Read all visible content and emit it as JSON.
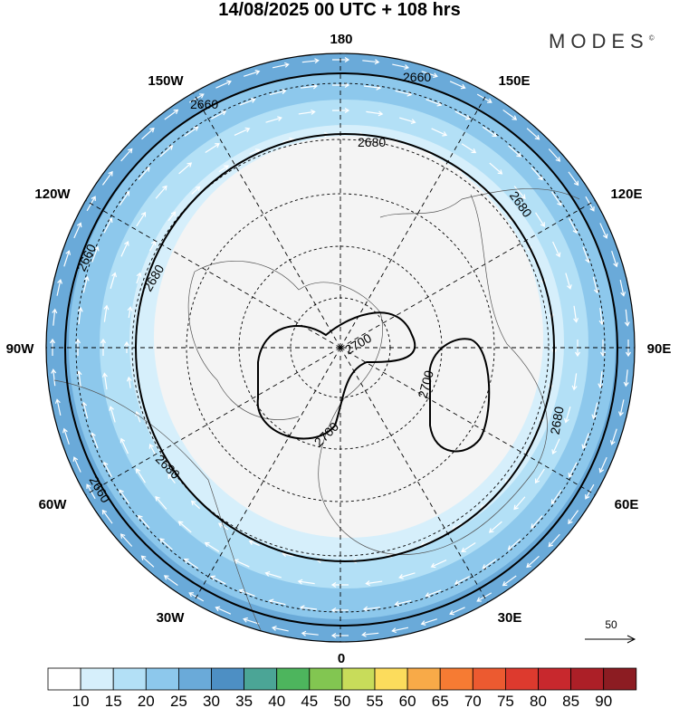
{
  "title": "14/08/2025  00 UTC  + 108 hrs",
  "logo": "MODES",
  "logo_mark": "©",
  "longitude_labels": {
    "lon_180": "180",
    "lon_150w": "150W",
    "lon_150e": "150E",
    "lon_120w": "120W",
    "lon_120e": "120E",
    "lon_90w": "90W",
    "lon_90e": "90E",
    "lon_60w": "60W",
    "lon_60e": "60E",
    "lon_30w": "30W",
    "lon_30e": "30E",
    "lon_0": "0"
  },
  "contours": {
    "c2660": "2660",
    "c2680": "2680",
    "c2700": "2700"
  },
  "vector_reference": "50",
  "colorbar": {
    "labels": [
      "10",
      "15",
      "20",
      "25",
      "30",
      "35",
      "40",
      "45",
      "50",
      "55",
      "60",
      "65",
      "70",
      "75",
      "80",
      "85",
      "90"
    ],
    "colors": [
      "#ffffff",
      "#d6effb",
      "#b3e0f6",
      "#8dc8ec",
      "#6aaad9",
      "#4d8fc4",
      "#4ba596",
      "#4db55d",
      "#82c651",
      "#c8dc5a",
      "#fcdc5c",
      "#f8aa48",
      "#f67b33",
      "#ec5a30",
      "#dd3a2e",
      "#c8282d",
      "#ac1f27",
      "#8c1c22"
    ]
  }
}
